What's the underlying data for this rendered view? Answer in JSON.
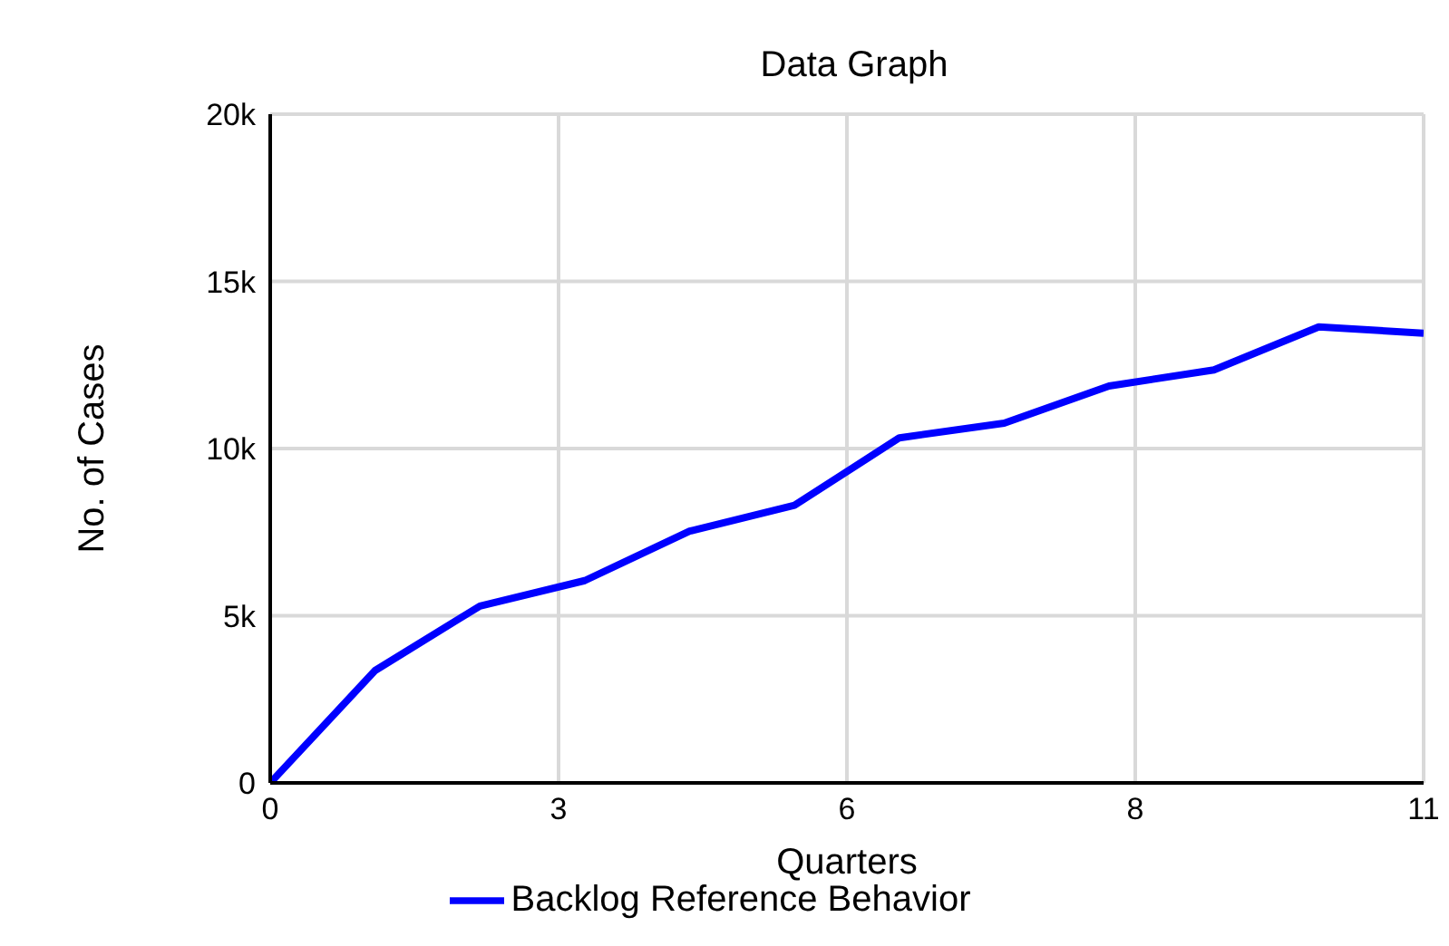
{
  "chart_data": {
    "type": "line",
    "title": "Data Graph",
    "xlabel": "Quarters",
    "ylabel": "No. of Cases",
    "x": [
      0,
      1,
      2,
      3,
      4,
      5,
      6,
      7,
      8,
      9,
      10,
      11
    ],
    "series": [
      {
        "name": "Backlog Reference Behavior",
        "color": "#0000ff",
        "values": [
          0,
          3360,
          5290,
          6050,
          7530,
          8300,
          10320,
          10760,
          11870,
          12350,
          13640,
          13450
        ]
      }
    ],
    "xlim": [
      0,
      11
    ],
    "xticks": [
      0,
      {
        "value": 2.75,
        "label": "3"
      },
      {
        "value": 5.5,
        "label": "6"
      },
      {
        "value": 8.25,
        "label": "8"
      },
      11
    ],
    "ylim": [
      0,
      20000
    ],
    "yticks": [
      0,
      {
        "value": 5000,
        "label": "5k"
      },
      {
        "value": 10000,
        "label": "10k"
      },
      {
        "value": 15000,
        "label": "15k"
      },
      {
        "value": 20000,
        "label": "20k"
      }
    ],
    "grid": true,
    "legend": "bottom",
    "marker": "none",
    "line_style": "solid"
  }
}
